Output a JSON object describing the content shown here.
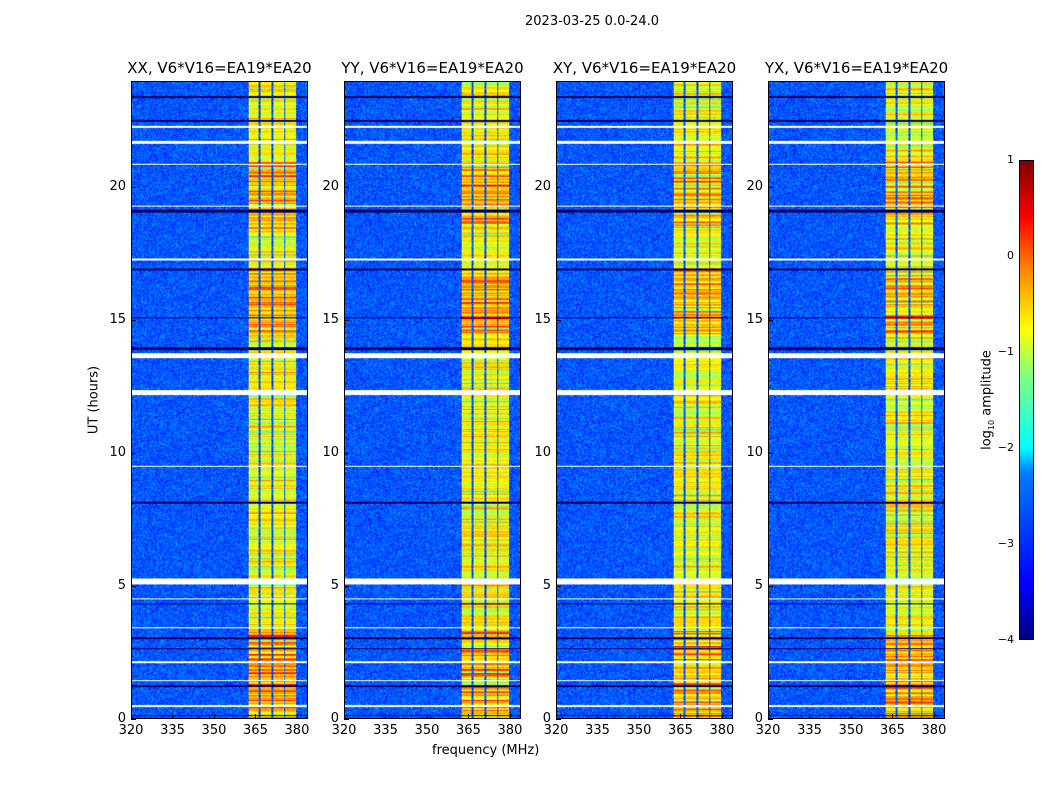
{
  "suptitle": "2023-03-25 0.0-24.0",
  "chart_data": {
    "type": "heatmap",
    "xlabel": "frequency (MHz)",
    "ylabel": "UT (hours)",
    "xlim": [
      320,
      384
    ],
    "ylim": [
      0,
      24
    ],
    "xticks": [
      320,
      335,
      350,
      365,
      380
    ],
    "yticks": [
      0,
      5,
      10,
      15,
      20
    ],
    "panels": [
      {
        "title": "XX, V6*V16=EA19*EA20"
      },
      {
        "title": "YY, V6*V16=EA19*EA20"
      },
      {
        "title": "XY, V6*V16=EA19*EA20"
      },
      {
        "title": "YX, V6*V16=EA19*EA20"
      }
    ],
    "rfi_subbands_mhz": [
      [
        362.5,
        366
      ],
      [
        366.8,
        370.8
      ],
      [
        371.5,
        375.5
      ],
      [
        376,
        380
      ]
    ],
    "flagged_hours": [
      [
        5.05,
        5.3
      ],
      [
        12.2,
        12.4
      ],
      [
        13.6,
        13.8
      ],
      [
        0.45,
        0.5
      ],
      [
        1.4,
        1.45
      ],
      [
        2.1,
        2.15
      ],
      [
        3.4,
        3.45
      ],
      [
        4.5,
        4.55
      ],
      [
        9.5,
        9.55
      ],
      [
        17.3,
        17.35
      ],
      [
        19.3,
        19.35
      ],
      [
        20.9,
        20.95
      ],
      [
        21.7,
        21.8
      ],
      [
        22.3,
        22.35
      ]
    ],
    "dark_hours": [
      [
        0.1,
        0.15
      ],
      [
        1.2,
        1.25
      ],
      [
        2.6,
        2.65
      ],
      [
        3.0,
        3.05
      ],
      [
        4.3,
        4.35
      ],
      [
        8.1,
        8.2
      ],
      [
        13.9,
        14.0
      ],
      [
        15.1,
        15.15
      ],
      [
        16.9,
        17.0
      ],
      [
        19.1,
        19.2
      ],
      [
        22.5,
        22.6
      ],
      [
        23.4,
        23.5
      ]
    ],
    "colorbar": {
      "label": "log10 amplitude",
      "range": [
        -4,
        1
      ],
      "ticks": [
        1,
        0,
        -1,
        -2,
        -3,
        -4
      ],
      "tick_labels": [
        "1",
        "0",
        "−1",
        "−2",
        "−3",
        "−4"
      ],
      "colormap": "jet"
    }
  }
}
